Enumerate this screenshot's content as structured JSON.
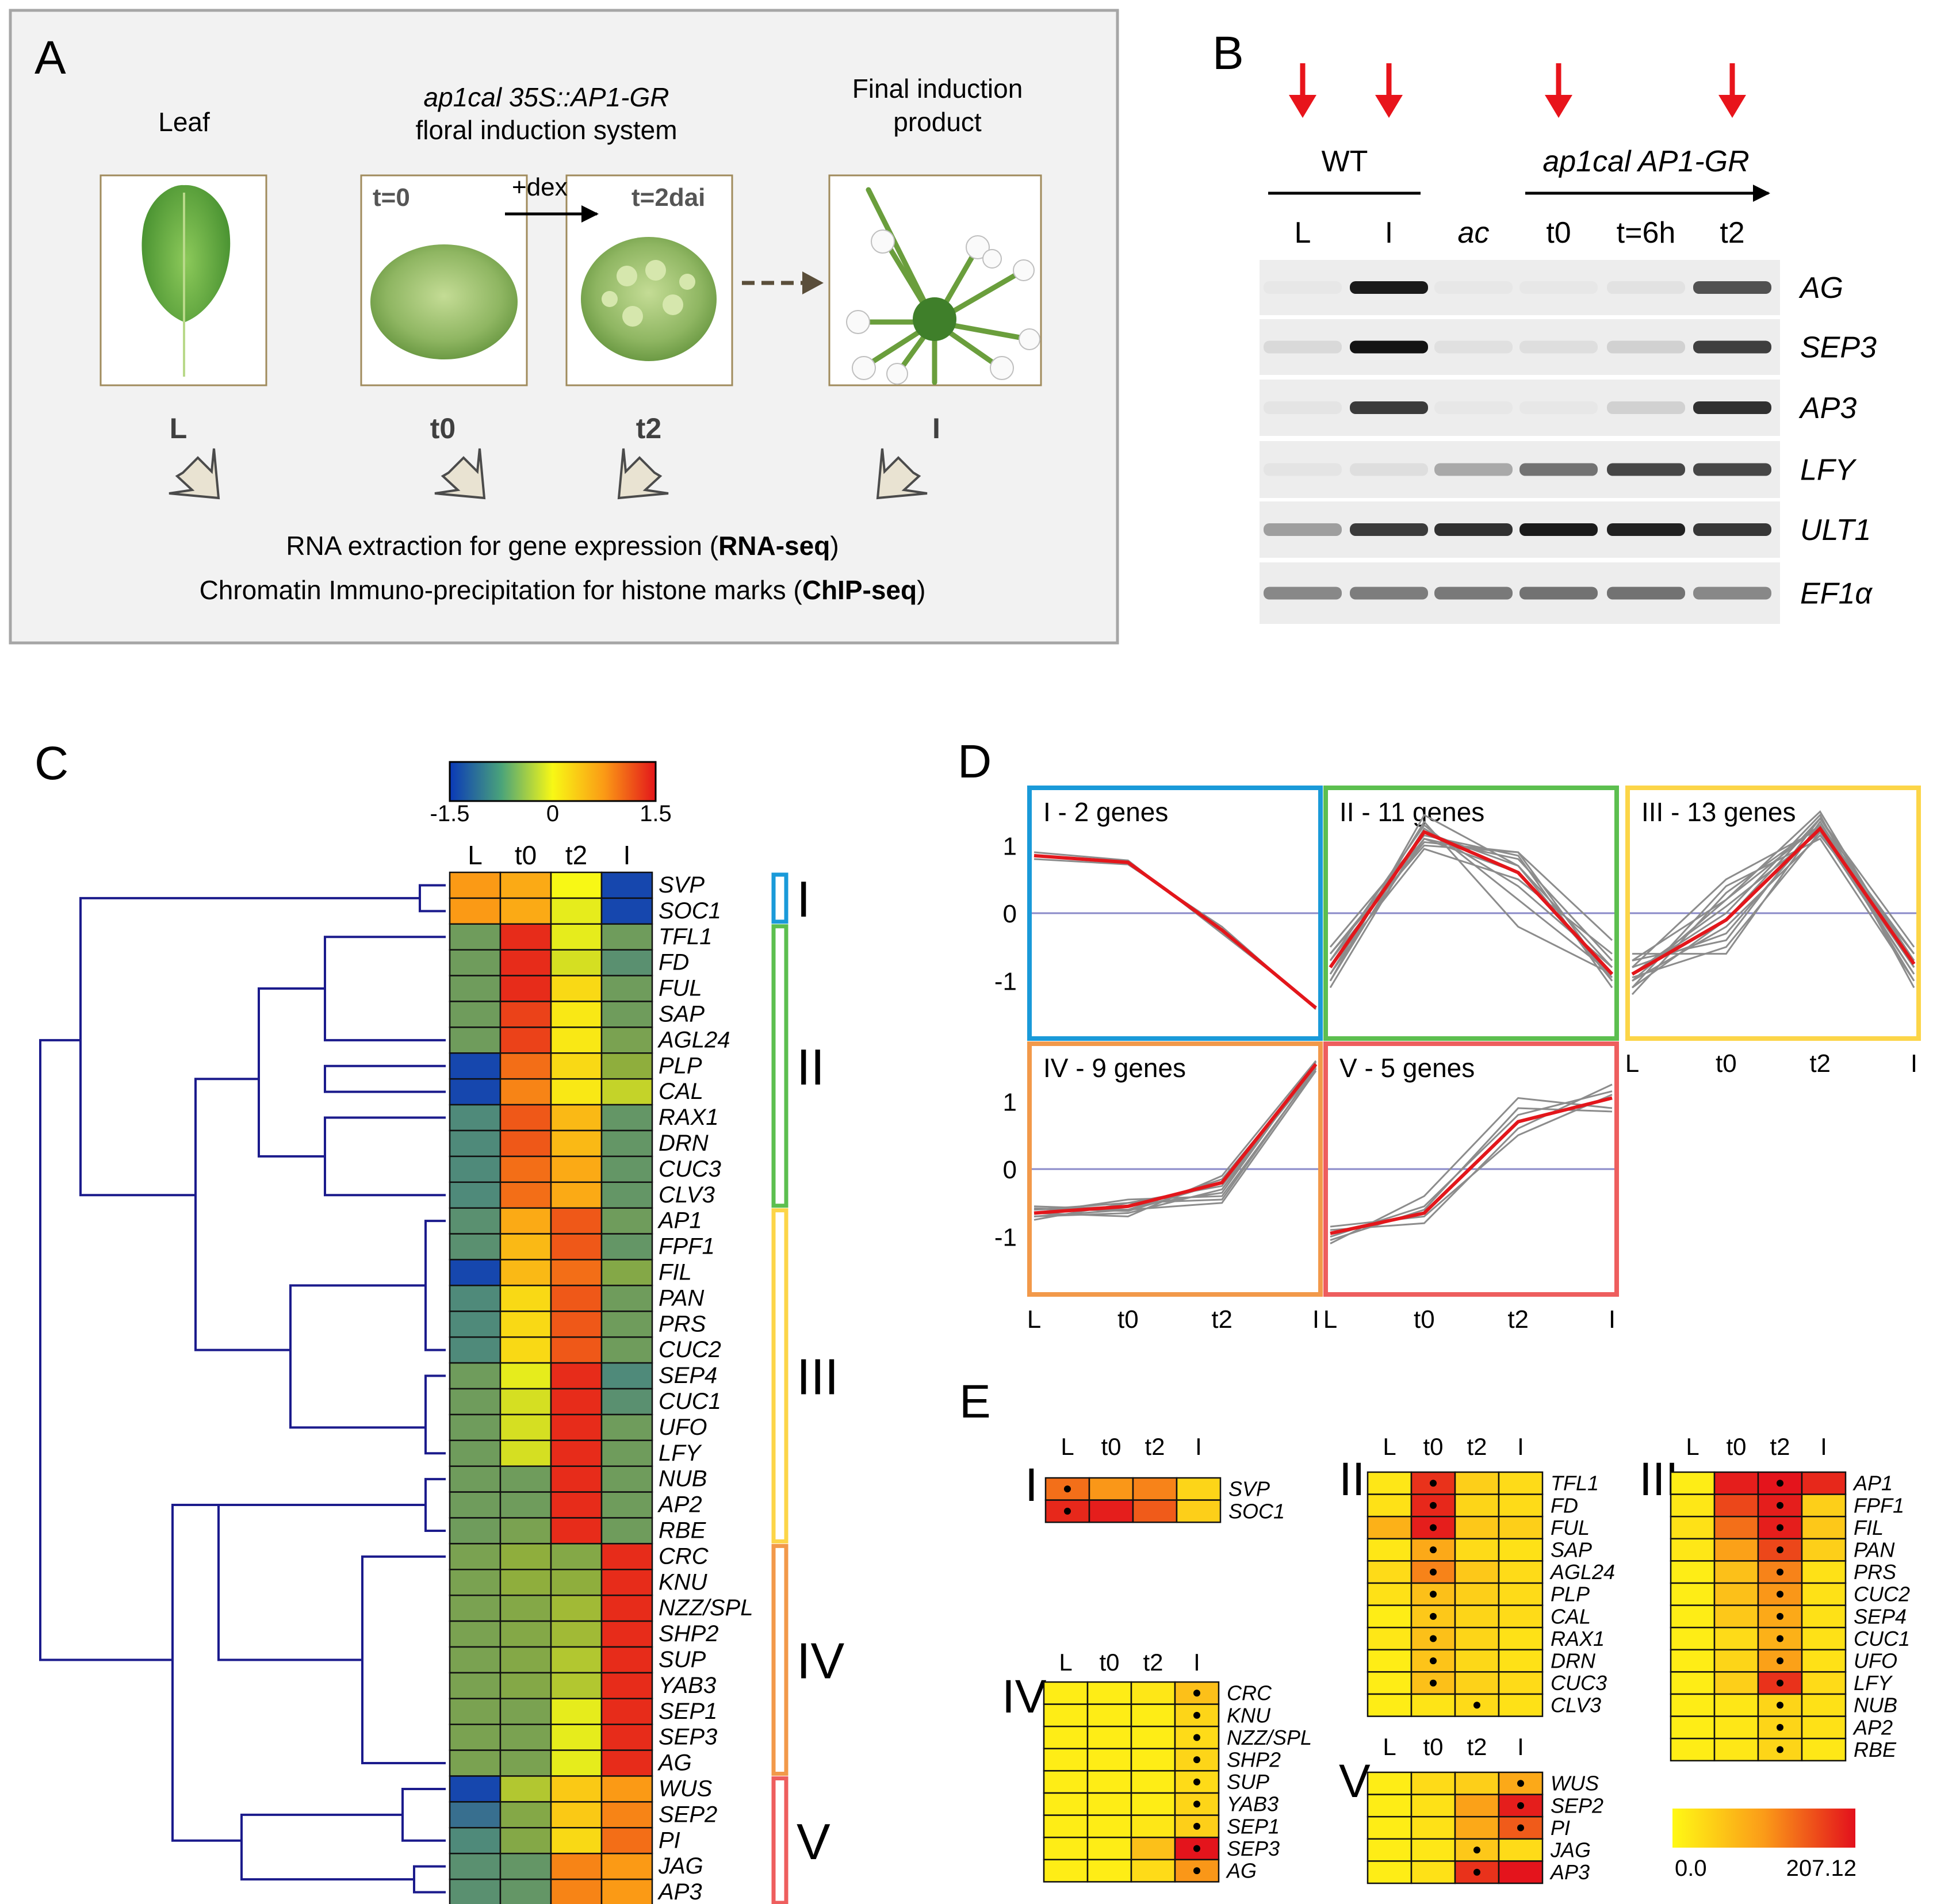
{
  "panelA": {
    "letter": "A",
    "leaf_label": "Leaf",
    "system_title_italic": "ap1cal  35S::AP1-GR",
    "system_title_plain": "floral induction system",
    "final_label_1": "Final induction",
    "final_label_2": "product",
    "t0_tag": "t=0",
    "t2_tag": "t=2dai",
    "dex": "+dex",
    "stage_L": "L",
    "stage_t0": "t0",
    "stage_t2": "t2",
    "stage_I": "I",
    "rna_text": "RNA extraction for gene expression (",
    "rna_bold": "RNA-seq",
    "rna_close": ")",
    "chip_text": "Chromatin Immuno-precipitation for histone marks (",
    "chip_bold": "ChIP-seq",
    "chip_close": ")"
  },
  "panelB": {
    "letter": "B",
    "wt": "WT",
    "mutant": "ap1cal AP1-GR",
    "lanes": [
      "L",
      "I",
      "ac",
      "t0",
      "t=6h",
      "t2"
    ],
    "genes": [
      "AG",
      "SEP3",
      "AP3",
      "LFY",
      "ULT1",
      "EF1α"
    ],
    "arrow_color": "#e8141b",
    "intensity": [
      [
        0.02,
        0.95,
        0.02,
        0.02,
        0.04,
        0.7
      ],
      [
        0.08,
        0.98,
        0.05,
        0.06,
        0.12,
        0.78
      ],
      [
        0.03,
        0.8,
        0.02,
        0.02,
        0.12,
        0.85
      ],
      [
        0.03,
        0.06,
        0.3,
        0.55,
        0.75,
        0.75
      ],
      [
        0.35,
        0.8,
        0.85,
        0.95,
        0.92,
        0.82
      ],
      [
        0.45,
        0.5,
        0.52,
        0.55,
        0.55,
        0.45
      ]
    ]
  },
  "panelC": {
    "letter": "C",
    "colorbar_ticks": [
      "-1.5",
      "0",
      "1.5"
    ],
    "columns": [
      "L",
      "t0",
      "t2",
      "I"
    ],
    "genes": [
      "SVP",
      "SOC1",
      "TFL1",
      "FD",
      "FUL",
      "SAP",
      "AGL24",
      "PLP",
      "CAL",
      "RAX1",
      "DRN",
      "CUC3",
      "CLV3",
      "AP1",
      "FPF1",
      "FIL",
      "PAN",
      "PRS",
      "CUC2",
      "SEP4",
      "CUC1",
      "UFO",
      "LFY",
      "NUB",
      "AP2",
      "RBE",
      "CRC",
      "KNU",
      "NZZ/SPL",
      "SHP2",
      "SUP",
      "YAB3",
      "SEP1",
      "SEP3",
      "AG",
      "WUS",
      "SEP2",
      "PI",
      "JAG",
      "AP3"
    ],
    "values": [
      [
        0.9,
        0.8,
        0.3,
        -1.4
      ],
      [
        0.9,
        0.8,
        0.2,
        -1.4
      ],
      [
        -0.6,
        1.4,
        0.2,
        -0.6
      ],
      [
        -0.6,
        1.4,
        0.1,
        -0.8
      ],
      [
        -0.6,
        1.4,
        0.5,
        -0.6
      ],
      [
        -0.6,
        1.3,
        0.4,
        -0.6
      ],
      [
        -0.6,
        1.3,
        0.4,
        -0.5
      ],
      [
        -1.4,
        1.1,
        0.5,
        -0.3
      ],
      [
        -1.4,
        1.0,
        0.4,
        0.0
      ],
      [
        -0.9,
        1.2,
        0.7,
        -0.7
      ],
      [
        -0.9,
        1.2,
        0.7,
        -0.7
      ],
      [
        -0.9,
        1.1,
        0.8,
        -0.7
      ],
      [
        -0.9,
        1.1,
        0.8,
        -0.7
      ],
      [
        -0.8,
        0.8,
        1.2,
        -0.6
      ],
      [
        -0.8,
        0.7,
        1.2,
        -0.7
      ],
      [
        -1.4,
        0.7,
        1.1,
        -0.4
      ],
      [
        -0.9,
        0.5,
        1.2,
        -0.6
      ],
      [
        -0.9,
        0.5,
        1.2,
        -0.6
      ],
      [
        -0.9,
        0.5,
        1.2,
        -0.6
      ],
      [
        -0.6,
        0.2,
        1.4,
        -0.9
      ],
      [
        -0.6,
        0.1,
        1.4,
        -0.8
      ],
      [
        -0.6,
        0.1,
        1.4,
        -0.6
      ],
      [
        -0.6,
        0.1,
        1.4,
        -0.6
      ],
      [
        -0.6,
        -0.6,
        1.4,
        -0.6
      ],
      [
        -0.6,
        -0.6,
        1.4,
        -0.6
      ],
      [
        -0.6,
        -0.5,
        1.4,
        -0.6
      ],
      [
        -0.5,
        -0.3,
        -0.4,
        1.4
      ],
      [
        -0.5,
        -0.3,
        -0.3,
        1.4
      ],
      [
        -0.5,
        -0.4,
        -0.2,
        1.4
      ],
      [
        -0.5,
        -0.4,
        -0.2,
        1.4
      ],
      [
        -0.5,
        -0.4,
        -0.1,
        1.4
      ],
      [
        -0.5,
        -0.4,
        -0.1,
        1.4
      ],
      [
        -0.5,
        -0.5,
        0.2,
        1.4
      ],
      [
        -0.5,
        -0.5,
        0.2,
        1.4
      ],
      [
        -0.5,
        -0.5,
        0.2,
        1.4
      ],
      [
        -1.4,
        -0.1,
        0.6,
        0.9
      ],
      [
        -1.1,
        -0.4,
        0.6,
        1.0
      ],
      [
        -0.9,
        -0.4,
        0.5,
        1.1
      ],
      [
        -0.8,
        -0.7,
        1.0,
        0.9
      ],
      [
        -0.8,
        -0.7,
        1.0,
        0.9
      ]
    ],
    "clusters": [
      {
        "label": "I",
        "start": 0,
        "end": 1,
        "color": "#1a9ad9"
      },
      {
        "label": "II",
        "start": 2,
        "end": 12,
        "color": "#5cbf4f"
      },
      {
        "label": "III",
        "start": 13,
        "end": 25,
        "color": "#fcd548"
      },
      {
        "label": "IV",
        "start": 26,
        "end": 34,
        "color": "#f2994a"
      },
      {
        "label": "V",
        "start": 35,
        "end": 39,
        "color": "#ee5e5e"
      }
    ]
  },
  "panelD": {
    "letter": "D",
    "charts": [
      {
        "title": "I - 2 genes",
        "color": "#1a9ad9",
        "mean": [
          0.85,
          0.75,
          -0.25,
          -1.4
        ],
        "gray": [
          [
            0.9,
            0.78,
            -0.3,
            -1.38
          ],
          [
            0.8,
            0.72,
            -0.2,
            -1.42
          ]
        ]
      },
      {
        "title": "II - 11 genes",
        "color": "#5cbf4f",
        "mean": [
          -0.8,
          1.2,
          0.6,
          -0.9
        ],
        "gray": [
          [
            -1.0,
            1.45,
            0.7,
            -0.8
          ],
          [
            -0.6,
            1.0,
            0.9,
            -1.0
          ],
          [
            -0.9,
            1.1,
            0.8,
            -0.7
          ],
          [
            -0.7,
            1.3,
            0.2,
            -0.9
          ],
          [
            -1.1,
            1.2,
            0.7,
            -1.0
          ],
          [
            -0.8,
            0.95,
            0.5,
            -0.6
          ],
          [
            -0.5,
            1.15,
            0.85,
            -1.1
          ],
          [
            -0.9,
            1.35,
            -0.2,
            -0.9
          ],
          [
            -0.7,
            1.05,
            0.9,
            -0.4
          ],
          [
            -1.0,
            1.25,
            0.4,
            -0.8
          ],
          [
            -0.6,
            1.1,
            0.6,
            -0.95
          ]
        ]
      },
      {
        "title": "III - 13 genes",
        "color": "#fcd548",
        "mean": [
          -0.9,
          -0.1,
          1.25,
          -0.75
        ],
        "gray": [
          [
            -1.0,
            0.2,
            1.5,
            -0.8
          ],
          [
            -0.8,
            -0.3,
            1.3,
            -0.6
          ],
          [
            -1.1,
            0.4,
            1.1,
            -1.0
          ],
          [
            -0.7,
            -0.4,
            1.4,
            -0.5
          ],
          [
            -0.9,
            0.1,
            1.2,
            -0.9
          ],
          [
            -1.2,
            0.3,
            1.3,
            -0.7
          ],
          [
            -0.6,
            -0.6,
            1.35,
            -0.8
          ],
          [
            -0.9,
            0.0,
            1.45,
            -1.1
          ],
          [
            -1.0,
            -0.2,
            1.15,
            -0.6
          ],
          [
            -0.8,
            0.5,
            1.25,
            -0.9
          ],
          [
            -1.1,
            -0.1,
            1.4,
            -0.7
          ],
          [
            -0.7,
            0.2,
            1.3,
            -1.0
          ],
          [
            -0.95,
            -0.5,
            1.2,
            -0.8
          ]
        ]
      },
      {
        "title": "IV - 9 genes",
        "color": "#f2994a",
        "mean": [
          -0.65,
          -0.55,
          -0.2,
          1.55
        ],
        "gray": [
          [
            -0.6,
            -0.5,
            -0.45,
            1.5
          ],
          [
            -0.7,
            -0.65,
            -0.3,
            1.55
          ],
          [
            -0.65,
            -0.7,
            -0.1,
            1.6
          ],
          [
            -0.55,
            -0.6,
            -0.5,
            1.45
          ],
          [
            -0.75,
            -0.5,
            -0.25,
            1.5
          ],
          [
            -0.6,
            -0.55,
            -0.35,
            1.58
          ],
          [
            -0.7,
            -0.6,
            -0.15,
            1.52
          ],
          [
            -0.65,
            -0.45,
            -0.4,
            1.48
          ],
          [
            -0.58,
            -0.62,
            -0.2,
            1.55
          ]
        ]
      },
      {
        "title": "V - 5 genes",
        "color": "#ee5e5e",
        "mean": [
          -0.95,
          -0.65,
          0.7,
          1.05
        ],
        "gray": [
          [
            -1.1,
            -0.4,
            1.05,
            0.9
          ],
          [
            -0.9,
            -0.8,
            0.6,
            1.25
          ],
          [
            -1.0,
            -0.55,
            0.8,
            1.15
          ],
          [
            -0.85,
            -0.7,
            0.5,
            1.1
          ],
          [
            -1.05,
            -0.6,
            0.9,
            0.85
          ]
        ]
      }
    ],
    "axis_ticks": [
      "1",
      "0",
      "-1"
    ],
    "x_ticks": [
      "L",
      "t0",
      "t2",
      "I"
    ]
  },
  "panelE": {
    "letter": "E",
    "columns": [
      "L",
      "t0",
      "t2",
      "I"
    ],
    "scale_min": "0.0",
    "scale_max": "207.12",
    "groups": [
      {
        "label": "I",
        "genes": [
          "SVP",
          "SOC1"
        ],
        "values": [
          [
            160,
            140,
            150,
            60
          ],
          [
            195,
            200,
            170,
            70
          ]
        ],
        "dots": [
          [
            0
          ],
          [
            0
          ]
        ]
      },
      {
        "label": "II",
        "genes": [
          "TFL1",
          "FD",
          "FUL",
          "SAP",
          "AGL24",
          "PLP",
          "CAL",
          "RAX1",
          "DRN",
          "CUC3",
          "CLV3"
        ],
        "values": [
          [
            30,
            190,
            70,
            50
          ],
          [
            40,
            195,
            60,
            50
          ],
          [
            110,
            200,
            80,
            70
          ],
          [
            30,
            120,
            50,
            40
          ],
          [
            50,
            150,
            80,
            50
          ],
          [
            40,
            90,
            70,
            50
          ],
          [
            20,
            80,
            60,
            50
          ],
          [
            30,
            90,
            60,
            40
          ],
          [
            20,
            85,
            55,
            40
          ],
          [
            20,
            90,
            65,
            50
          ],
          [
            20,
            35,
            50,
            40
          ]
        ],
        "dots": [
          [
            1
          ],
          [
            1
          ],
          [
            1
          ],
          [
            1
          ],
          [
            1
          ],
          [
            1
          ],
          [
            1
          ],
          [
            1
          ],
          [
            1
          ],
          [
            1
          ],
          [
            2
          ]
        ]
      },
      {
        "label": "III",
        "genes": [
          "AP1",
          "FPF1",
          "FIL",
          "PAN",
          "PRS",
          "CUC2",
          "SEP4",
          "CUC1",
          "UFO",
          "LFY",
          "NUB",
          "AP2",
          "RBE"
        ],
        "values": [
          [
            20,
            200,
            205,
            195
          ],
          [
            30,
            180,
            200,
            70
          ],
          [
            40,
            160,
            200,
            80
          ],
          [
            30,
            130,
            180,
            70
          ],
          [
            20,
            90,
            150,
            40
          ],
          [
            20,
            90,
            140,
            40
          ],
          [
            20,
            80,
            120,
            40
          ],
          [
            20,
            50,
            110,
            40
          ],
          [
            20,
            60,
            130,
            40
          ],
          [
            20,
            70,
            190,
            50
          ],
          [
            20,
            30,
            60,
            40
          ],
          [
            20,
            30,
            60,
            40
          ],
          [
            20,
            30,
            60,
            30
          ]
        ],
        "dots": [
          [
            2
          ],
          [
            2
          ],
          [
            2
          ],
          [
            2
          ],
          [
            2
          ],
          [
            2
          ],
          [
            2
          ],
          [
            2
          ],
          [
            2
          ],
          [
            2
          ],
          [
            2
          ],
          [
            2
          ],
          [
            2
          ]
        ]
      },
      {
        "label": "IV",
        "genes": [
          "CRC",
          "KNU",
          "NZZ/SPL",
          "SHP2",
          "SUP",
          "YAB3",
          "SEP1",
          "SEP3",
          "AG"
        ],
        "values": [
          [
            20,
            20,
            30,
            90
          ],
          [
            20,
            20,
            20,
            60
          ],
          [
            20,
            20,
            20,
            50
          ],
          [
            20,
            20,
            20,
            60
          ],
          [
            20,
            20,
            20,
            50
          ],
          [
            20,
            20,
            20,
            60
          ],
          [
            20,
            20,
            30,
            70
          ],
          [
            20,
            20,
            90,
            205
          ],
          [
            20,
            20,
            50,
            140
          ]
        ],
        "dots": [
          [
            3
          ],
          [
            3
          ],
          [
            3
          ],
          [
            3
          ],
          [
            3
          ],
          [
            3
          ],
          [
            3
          ],
          [
            3
          ],
          [
            3
          ]
        ]
      },
      {
        "label": "V",
        "genes": [
          "WUS",
          "SEP2",
          "PI",
          "JAG",
          "AP3"
        ],
        "values": [
          [
            20,
            50,
            70,
            120
          ],
          [
            20,
            40,
            130,
            200
          ],
          [
            20,
            40,
            120,
            170
          ],
          [
            20,
            30,
            80,
            50
          ],
          [
            20,
            40,
            190,
            205
          ]
        ],
        "dots": [
          [
            3
          ],
          [
            3
          ],
          [
            3
          ],
          [
            2
          ],
          [
            2
          ]
        ]
      }
    ]
  }
}
